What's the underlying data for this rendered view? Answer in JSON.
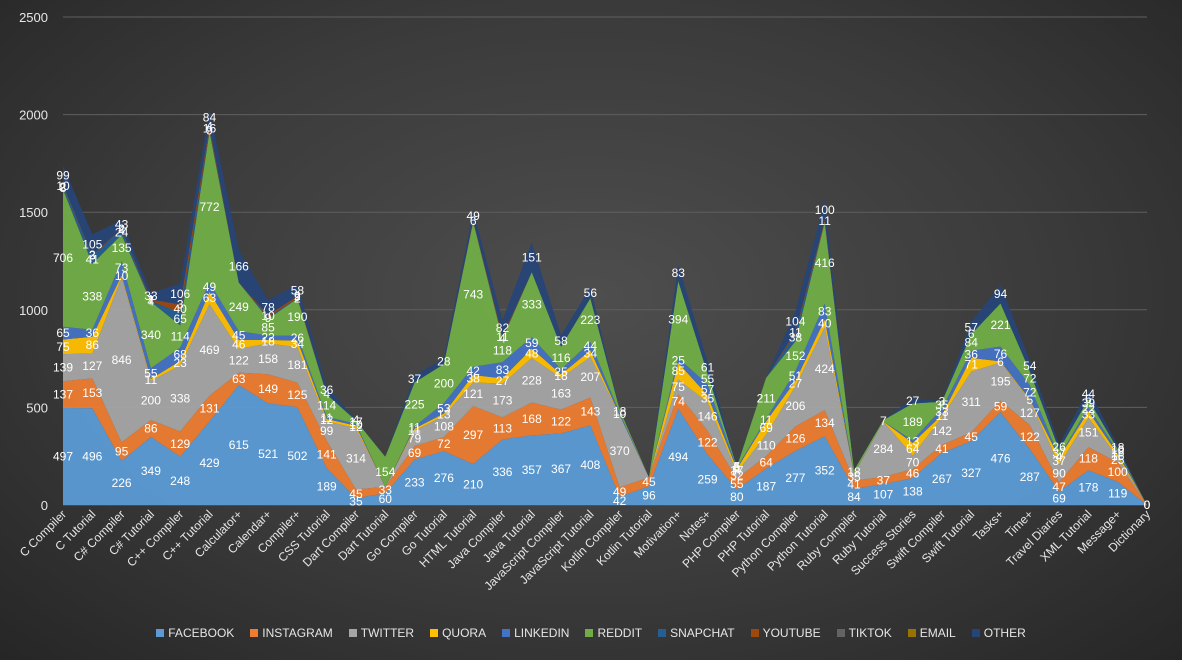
{
  "chart_data": {
    "type": "area",
    "stacked": true,
    "ylim": [
      0,
      2500
    ],
    "yticks": [
      0,
      500,
      1000,
      1500,
      2000,
      2500
    ],
    "grid": true,
    "legend_position": "bottom",
    "categories": [
      "C Compiler",
      "C Tutorial",
      "C# Compiler",
      "C# Tutorial",
      "C++ Compiler",
      "C++ Tutorial",
      "Calculator+",
      "Calendar+",
      "Compiler+",
      "CSS Tutorial",
      "Dart Compiler",
      "Dart Tutorial",
      "Go Compiler",
      "Go Tutorial",
      "HTML Tutorial",
      "Java Compiler",
      "Java Tutorial",
      "JavaScript Compiler",
      "JavaScript Tutorial",
      "Kotlin Compiler",
      "Kotlin Tutorial",
      "Motivation+",
      "Notes+",
      "PHP Compiler",
      "PHP Tutorial",
      "Python Compiler",
      "Python Tutorial",
      "Ruby Compiler",
      "Ruby Tutorial",
      "Success Stories",
      "Swift Compiler",
      "Swift Tutorial",
      "Tasks+",
      "Time+",
      "Travel Diaries",
      "XML Tutorial",
      "Message+",
      "Dictionary"
    ],
    "series": [
      {
        "name": "FACEBOOK",
        "color": "#5b9bd5",
        "values": [
          497,
          496,
          226,
          349,
          248,
          429,
          615,
          521,
          502,
          189,
          35,
          60,
          233,
          276,
          210,
          336,
          357,
          367,
          408,
          42,
          96,
          494,
          259,
          80,
          187,
          277,
          352,
          84,
          107,
          138,
          267,
          327,
          476,
          287,
          69,
          178,
          119,
          0
        ]
      },
      {
        "name": "INSTAGRAM",
        "color": "#ed7d31",
        "values": [
          137,
          153,
          95,
          86,
          129,
          131,
          63,
          149,
          125,
          141,
          45,
          33,
          69,
          72,
          297,
          113,
          168,
          122,
          143,
          49,
          45,
          74,
          122,
          55,
          64,
          126,
          134,
          41,
          37,
          46,
          41,
          45,
          59,
          122,
          47,
          118,
          100,
          0
        ]
      },
      {
        "name": "TWITTER",
        "color": "#a5a5a5",
        "values": [
          139,
          127,
          846,
          200,
          338,
          469,
          122,
          158,
          181,
          99,
          314,
          0,
          79,
          108,
          121,
          173,
          228,
          163,
          207,
          370,
          0,
          75,
          146,
          32,
          110,
          206,
          424,
          35,
          284,
          70,
          142,
          311,
          195,
          127,
          90,
          151,
          25,
          0
        ]
      },
      {
        "name": "QUORA",
        "color": "#ffc000",
        "values": [
          75,
          86,
          10,
          11,
          23,
          63,
          46,
          18,
          34,
          12,
          12,
          0,
          11,
          13,
          38,
          27,
          48,
          18,
          34,
          0,
          0,
          85,
          35,
          17,
          69,
          27,
          40,
          0,
          0,
          64,
          11,
          71,
          6,
          5,
          37,
          33,
          16,
          0
        ]
      },
      {
        "name": "LINKEDIN",
        "color": "#4472c4",
        "values": [
          65,
          36,
          73,
          55,
          68,
          49,
          45,
          22,
          26,
          11,
          10,
          0,
          11,
          53,
          42,
          83,
          59,
          25,
          44,
          10,
          0,
          25,
          57,
          6,
          11,
          51,
          83,
          0,
          0,
          13,
          33,
          36,
          76,
          72,
          4,
          22,
          16,
          0
        ]
      },
      {
        "name": "REDDIT",
        "color": "#70ad47",
        "values": [
          706,
          338,
          135,
          340,
          114,
          772,
          249,
          85,
          190,
          114,
          17,
          154,
          225,
          200,
          743,
          118,
          333,
          116,
          223,
          18,
          0,
          394,
          55,
          5,
          211,
          152,
          416,
          18,
          7,
          189,
          35,
          84,
          221,
          72,
          37,
          39,
          10,
          0
        ]
      },
      {
        "name": "SNAPCHAT",
        "color": "#255e91",
        "values": [
          8,
          41,
          24,
          4,
          65,
          9,
          0,
          9,
          2,
          4,
          0,
          0,
          0,
          0,
          0,
          4,
          0,
          0,
          0,
          0,
          0,
          0,
          0,
          5,
          0,
          38,
          0,
          0,
          0,
          0,
          3,
          6,
          0,
          0,
          0,
          6,
          0,
          0
        ]
      },
      {
        "name": "YOUTUBE",
        "color": "#9e480e",
        "values": [
          2,
          3,
          4,
          7,
          40,
          16,
          0,
          10,
          9,
          0,
          0,
          0,
          0,
          0,
          6,
          11,
          0,
          0,
          0,
          0,
          0,
          0,
          0,
          0,
          0,
          11,
          11,
          0,
          0,
          0,
          0,
          0,
          0,
          0,
          0,
          0,
          0,
          0
        ]
      },
      {
        "name": "TIKTOK",
        "color": "#636363",
        "values": [
          10,
          2,
          2,
          1,
          3,
          4,
          0,
          0,
          2,
          0,
          0,
          0,
          0,
          0,
          0,
          0,
          0,
          0,
          0,
          0,
          0,
          0,
          0,
          0,
          0,
          0,
          0,
          0,
          0,
          0,
          0,
          0,
          0,
          0,
          0,
          0,
          0,
          0
        ]
      },
      {
        "name": "EMAIL",
        "color": "#997300",
        "values": [
          0,
          0,
          0,
          0,
          0,
          0,
          0,
          0,
          0,
          0,
          0,
          0,
          0,
          0,
          0,
          0,
          0,
          0,
          0,
          0,
          0,
          0,
          0,
          0,
          0,
          0,
          0,
          0,
          0,
          0,
          0,
          0,
          0,
          0,
          0,
          0,
          0,
          0
        ]
      },
      {
        "name": "OTHER",
        "color": "#264478",
        "values": [
          99,
          105,
          43,
          33,
          106,
          84,
          166,
          78,
          58,
          36,
          4,
          0,
          37,
          28,
          49,
          82,
          151,
          58,
          56,
          0,
          0,
          83,
          61,
          0,
          0,
          104,
          100,
          0,
          0,
          27,
          0,
          57,
          94,
          54,
          26,
          44,
          18,
          0
        ]
      }
    ],
    "data_labels": [
      [
        "497",
        "137",
        "139",
        "75",
        "65",
        "706",
        "8",
        "2",
        "10",
        "",
        "99"
      ],
      [
        "496",
        "153",
        "127",
        "86",
        "36",
        "338",
        "41",
        "3",
        "2",
        "",
        "105"
      ],
      [
        "226",
        "95",
        "846",
        "10",
        "73",
        "135",
        "24",
        "4",
        "2",
        "",
        "43"
      ],
      [
        "349",
        "86",
        "200",
        "11",
        "55",
        "340",
        "4",
        "7",
        "1",
        "",
        "33"
      ],
      [
        "248",
        "129",
        "338",
        "23",
        "68",
        "114",
        "65",
        "40",
        "3",
        "",
        "106"
      ],
      [
        "429",
        "131",
        "469",
        "63",
        "49",
        "772",
        "9",
        "16",
        "4",
        "",
        "84"
      ],
      [
        "615",
        "63",
        "122",
        "46",
        "45",
        "249",
        "",
        "",
        "",
        "",
        "166"
      ],
      [
        "521",
        "149",
        "158",
        "18",
        "22",
        "85",
        "9",
        "10",
        "",
        "",
        "78"
      ],
      [
        "502",
        "125",
        "181",
        "34",
        "26",
        "190",
        "2",
        "9",
        "2",
        "",
        "58"
      ],
      [
        "189",
        "141",
        "99",
        "12",
        "11",
        "114",
        "4",
        "",
        "",
        "",
        "36"
      ],
      [
        "35",
        "45",
        "314",
        "12",
        "10",
        "17",
        "",
        "",
        "",
        "",
        "4"
      ],
      [
        "60",
        "33",
        "",
        "",
        "",
        "154",
        "",
        "",
        "",
        "",
        ""
      ],
      [
        "233",
        "69",
        "79",
        "11",
        "11",
        "225",
        "",
        "",
        "",
        "",
        "37"
      ],
      [
        "276",
        "72",
        "108",
        "13",
        "53",
        "200",
        "",
        "",
        "",
        "",
        "28"
      ],
      [
        "210",
        "297",
        "121",
        "38",
        "42",
        "743",
        "",
        "6",
        "",
        "",
        "49"
      ],
      [
        "336",
        "113",
        "173",
        "27",
        "83",
        "118",
        "4",
        "11",
        "",
        "",
        "82"
      ],
      [
        "357",
        "168",
        "228",
        "48",
        "59",
        "333",
        "",
        "",
        "",
        "",
        "151"
      ],
      [
        "367",
        "122",
        "163",
        "18",
        "25",
        "116",
        "",
        "",
        "",
        "",
        "58"
      ],
      [
        "408",
        "143",
        "207",
        "34",
        "44",
        "223",
        "",
        "",
        "",
        "",
        "56"
      ],
      [
        "42",
        "49",
        "370",
        "",
        "10",
        "18",
        "",
        "",
        "",
        "",
        ""
      ],
      [
        "96",
        "45",
        "",
        "",
        "",
        "",
        "",
        "",
        "",
        "",
        ""
      ],
      [
        "494",
        "74",
        "75",
        "85",
        "25",
        "394",
        "",
        "",
        "",
        "",
        "83"
      ],
      [
        "259",
        "122",
        "146",
        "35",
        "57",
        "55",
        "",
        "",
        "",
        "",
        "61"
      ],
      [
        "80",
        "55",
        "32",
        "17",
        "6",
        "5",
        "5",
        "",
        "",
        "",
        ""
      ],
      [
        "187",
        "64",
        "110",
        "69",
        "11",
        "211",
        "",
        "",
        "",
        "",
        ""
      ],
      [
        "277",
        "126",
        "206",
        "27",
        "51",
        "152",
        "38",
        "11",
        "",
        "",
        "104"
      ],
      [
        "352",
        "134",
        "424",
        "40",
        "83",
        "416",
        "",
        "11",
        "",
        "",
        "100"
      ],
      [
        "84",
        "41",
        "35",
        "",
        "",
        "18",
        "",
        "",
        "",
        "",
        ""
      ],
      [
        "107",
        "37",
        "284",
        "",
        "",
        "7",
        "",
        "",
        "",
        "",
        ""
      ],
      [
        "138",
        "46",
        "70",
        "64",
        "13",
        "189",
        "",
        "",
        "",
        "",
        "27"
      ],
      [
        "267",
        "41",
        "142",
        "11",
        "33",
        "35",
        "3",
        "",
        "",
        "",
        ""
      ],
      [
        "327",
        "45",
        "311",
        "71",
        "36",
        "84",
        "6",
        "",
        "",
        "",
        "57"
      ],
      [
        "476",
        "59",
        "195",
        "6",
        "76",
        "221",
        "",
        "",
        "",
        "",
        "94"
      ],
      [
        "287",
        "122",
        "127",
        "5",
        "72",
        "72",
        "",
        "",
        "",
        "",
        "54"
      ],
      [
        "69",
        "47",
        "90",
        "37",
        "4",
        "37",
        "",
        "",
        "",
        "",
        "26"
      ],
      [
        "178",
        "118",
        "151",
        "33",
        "22",
        "39",
        "6",
        "",
        "",
        "",
        "44"
      ],
      [
        "119",
        "100",
        "25",
        "16",
        "16",
        "10",
        "",
        "",
        "",
        "",
        "18"
      ],
      [
        "0",
        "",
        "",
        "",
        "",
        "",
        "",
        "",
        "",
        "",
        "0"
      ]
    ]
  }
}
